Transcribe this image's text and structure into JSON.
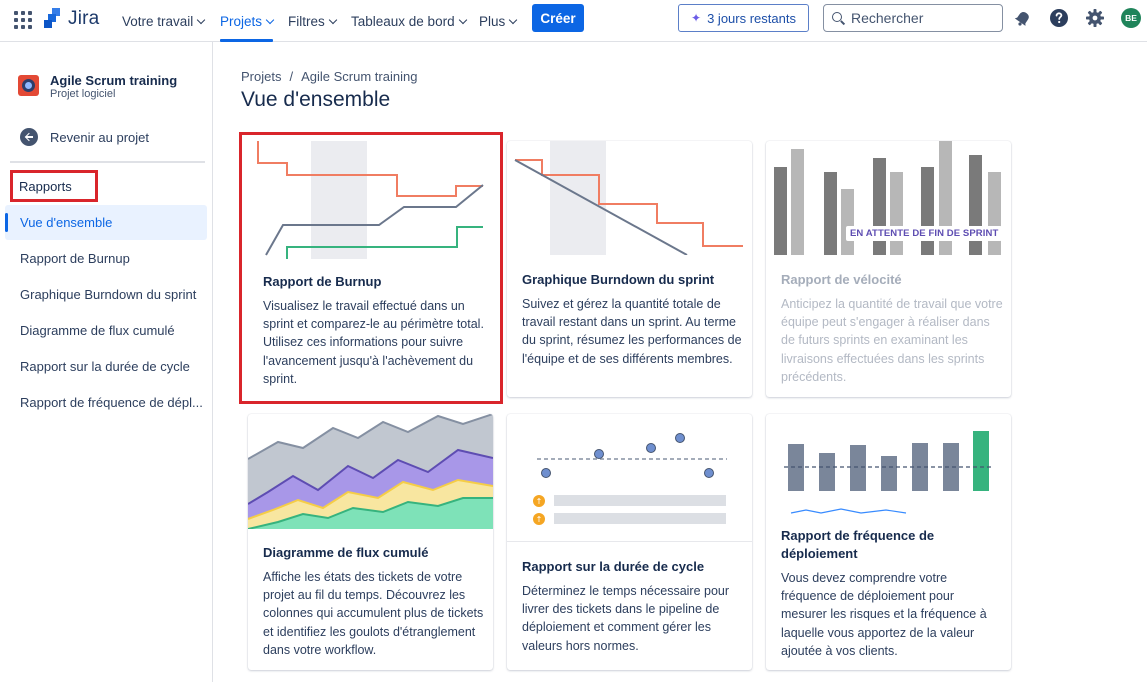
{
  "topnav": {
    "product": "Jira",
    "items": [
      {
        "label": "Votre travail"
      },
      {
        "label": "Projets",
        "active": true
      },
      {
        "label": "Filtres"
      },
      {
        "label": "Tableaux de bord"
      },
      {
        "label": "Plus"
      }
    ],
    "create_label": "Créer",
    "trial_label": "3 jours restants",
    "search_placeholder": "Rechercher",
    "avatar_initials": "BE"
  },
  "sidebar": {
    "project_name": "Agile Scrum training",
    "project_type": "Projet logiciel",
    "back_label": "Revenir au projet",
    "section_heading": "Rapports",
    "items": [
      {
        "label": "Vue d'ensemble",
        "active": true
      },
      {
        "label": "Rapport de Burnup"
      },
      {
        "label": "Graphique Burndown du sprint"
      },
      {
        "label": "Diagramme de flux cumulé"
      },
      {
        "label": "Rapport sur la durée de cycle"
      },
      {
        "label": "Rapport de fréquence de dépl..."
      }
    ]
  },
  "main": {
    "breadcrumb": {
      "root": "Projets",
      "separator": "/",
      "current": "Agile Scrum training"
    },
    "title": "Vue d'ensemble",
    "cards": [
      {
        "title": "Rapport de Burnup",
        "description": "Visualisez le travail effectué dans un sprint et comparez-le au périmètre total. Utilisez ces informations pour suivre l'avancement jusqu'à l'achèvement du sprint."
      },
      {
        "title": "Graphique Burndown du sprint",
        "description": "Suivez et gérez la quantité totale de travail restant dans un sprint. Au terme du sprint, résumez les performances de l'équipe et de ses différents membres."
      },
      {
        "title": "Rapport de vélocité",
        "badge": "EN ATTENTE DE FIN DE SPRINT",
        "description": "Anticipez la quantité de travail que votre équipe peut s'engager à réaliser dans de futurs sprints en examinant les livraisons effectuées dans les sprints précédents."
      },
      {
        "title": "Diagramme de flux cumulé",
        "description": "Affiche les états des tickets de votre projet au fil du temps. Découvrez les colonnes qui accumulent plus de tickets et identifiez les goulots d'étranglement dans votre workflow."
      },
      {
        "title": "Rapport sur la durée de cycle",
        "description": "Déterminez le temps nécessaire pour livrer des tickets dans le pipeline de déploiement et comment gérer les valeurs hors normes."
      },
      {
        "title": "Rapport de fréquence de déploiement",
        "description": "Vous devez comprendre votre fréquence de déploiement pour mesurer les risques et la fréquence à laquelle vous apportez de la valeur ajoutée à vos clients."
      }
    ]
  },
  "colors": {
    "accent": "#0c66e4",
    "highlight": "#d9252b",
    "scope_line": "#f07d62",
    "done_line": "#36b37e",
    "work_line": "#6b778c"
  }
}
